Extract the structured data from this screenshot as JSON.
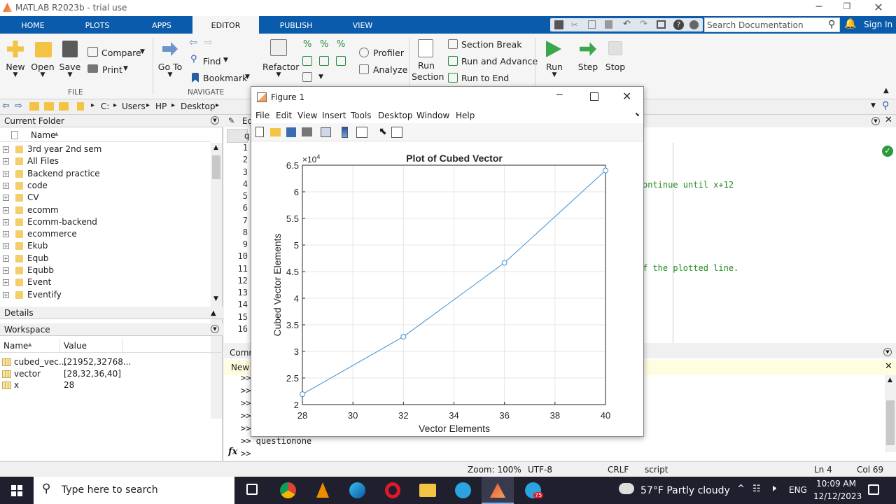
{
  "app": {
    "title": "MATLAB R2023b - trial use"
  },
  "tabs": [
    "HOME",
    "PLOTS",
    "APPS",
    "EDITOR",
    "PUBLISH",
    "VIEW"
  ],
  "active_tab": "EDITOR",
  "search": {
    "placeholder": "Search Documentation"
  },
  "signin": "Sign In",
  "ribbon": {
    "file": {
      "new": "New",
      "open": "Open",
      "save": "Save",
      "compare": "Compare",
      "print": "Print",
      "section": "FILE"
    },
    "navigate": {
      "goto": "Go To",
      "find": "Find",
      "bookmark": "Bookmark",
      "section": "NAVIGATE"
    },
    "code": {
      "refactor": "Refactor",
      "profiler": "Profiler",
      "analyze": "Analyze"
    },
    "section": {
      "run_section": "Run Section",
      "section_break": "Section Break",
      "run_advance": "Run and Advance",
      "run_end": "Run to End"
    },
    "run": {
      "run": "Run",
      "step": "Step",
      "stop": "Stop"
    }
  },
  "address": {
    "path": [
      "C:",
      "Users",
      "HP",
      "Desktop"
    ]
  },
  "current_folder": {
    "title": "Current Folder",
    "col_name": "Name",
    "items": [
      "3rd year 2nd sem",
      "All Files",
      "Backend practice",
      "code",
      "CV",
      "ecomm",
      "Ecomm-backend",
      "ecommerce",
      "Ekub",
      "Equb",
      "Equbb",
      "Event",
      "Eventify"
    ]
  },
  "details": {
    "title": "Details"
  },
  "workspace": {
    "title": "Workspace",
    "col_name": "Name",
    "col_value": "Value",
    "vars": [
      {
        "name": "cubed_vec...",
        "value": "[21952,32768..."
      },
      {
        "name": "vector",
        "value": "[28,32,36,40]"
      },
      {
        "name": "x",
        "value": "28"
      }
    ]
  },
  "editor": {
    "tab_label": "Ed",
    "file_tab": "q",
    "line_numbers": [
      "1",
      "2",
      "3",
      "4",
      "5",
      "6",
      "7",
      "8",
      "9",
      "10",
      "11",
      "12",
      "13",
      "14",
      "15",
      "16"
    ],
    "visible_code": {
      "line4": "ontinue until x+12",
      "line11": "f the plotted line."
    }
  },
  "command": {
    "title": "Comm",
    "banner": "New t",
    "prompts": [
      ">>",
      ">>",
      ">>",
      ">>",
      ">>",
      ">>"
    ],
    "last_command": ">> questionone",
    "prompt": ">>",
    "fx": "fx"
  },
  "status": {
    "zoom": "Zoom: 100%",
    "encoding": "UTF-8",
    "eol": "CRLF",
    "type": "script",
    "ln": "Ln  4",
    "col": "Col  69"
  },
  "figure": {
    "title": "Figure 1",
    "menu": [
      "File",
      "Edit",
      "View",
      "Insert",
      "Tools",
      "Desktop",
      "Window",
      "Help"
    ],
    "colors": {
      "line": "#3a8fd0"
    }
  },
  "chart_data": {
    "type": "line",
    "title": "Plot of Cubed Vector",
    "xlabel": "Vector Elements",
    "ylabel": "Cubed Vector Elements",
    "exponent": "×10",
    "exponent_power": "4",
    "x": [
      28,
      32,
      36,
      40
    ],
    "y": [
      21952,
      32768,
      46656,
      64000
    ],
    "xlim": [
      28,
      40
    ],
    "ylim": [
      20000,
      65000
    ],
    "xticks": [
      "28",
      "30",
      "32",
      "34",
      "36",
      "38",
      "40"
    ],
    "yticks": [
      "2",
      "2.5",
      "3",
      "3.5",
      "4",
      "4.5",
      "5",
      "5.5",
      "6",
      "6.5"
    ],
    "marker": "circle",
    "grid": true
  },
  "taskbar": {
    "search": "Type here to search",
    "weather": "57°F  Partly cloudy",
    "lang": "ENG",
    "time": "10:09 AM",
    "date": "12/12/2023",
    "telegram_badge": "75"
  }
}
